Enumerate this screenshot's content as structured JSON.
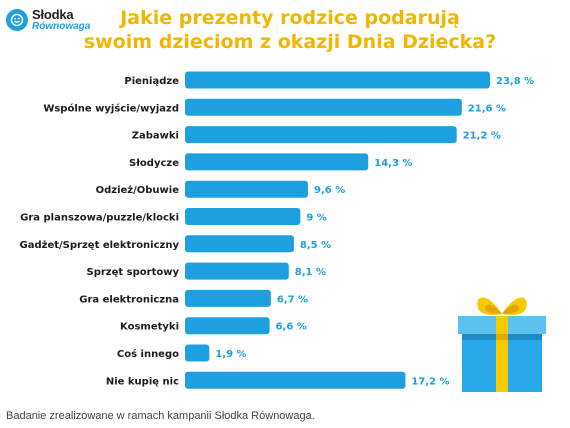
{
  "logo": {
    "line1": "Słodka",
    "line2": "Równowaga"
  },
  "title_lines": [
    "Jakie prezenty rodzice podarują",
    "swoim dzieciom z okazji Dnia Dziecka?"
  ],
  "footnote": "Badanie zrealizowane w ramach kampanii Słodka Równowaga.",
  "colors": {
    "bar": "#1ea0e0",
    "title": "#f2b600",
    "value": "#1ea0e0",
    "gift_box": "#29a9ea",
    "gift_ribbon": "#f7c900"
  },
  "chart_data": {
    "type": "bar",
    "orientation": "horizontal",
    "title": "Jakie prezenty rodzice podarują swoim dzieciom z okazji Dnia Dziecka?",
    "categories": [
      "Pieniądze",
      "Wspólne wyjście/wyjazd",
      "Zabawki",
      "Słodycze",
      "Odzież/Obuwie",
      "Gra planszowa/puzzle/klocki",
      "Gadżet/Sprzęt elektroniczny",
      "Sprzęt sportowy",
      "Gra elektroniczna",
      "Kosmetyki",
      "Coś innego",
      "Nie kupię nic"
    ],
    "values": [
      23.8,
      21.6,
      21.2,
      14.3,
      9.6,
      9,
      8.5,
      8.1,
      6.7,
      6.6,
      1.9,
      17.2
    ],
    "value_labels": [
      "23,8 %",
      "21,6 %",
      "21,2 %",
      "14,3 %",
      "9,6 %",
      "9 %",
      "8,5 %",
      "8,1 %",
      "6,7 %",
      "6,6 %",
      "1,9 %",
      "17,2 %"
    ],
    "xlim": [
      0,
      23.8
    ],
    "grid": false,
    "legend": "none"
  }
}
